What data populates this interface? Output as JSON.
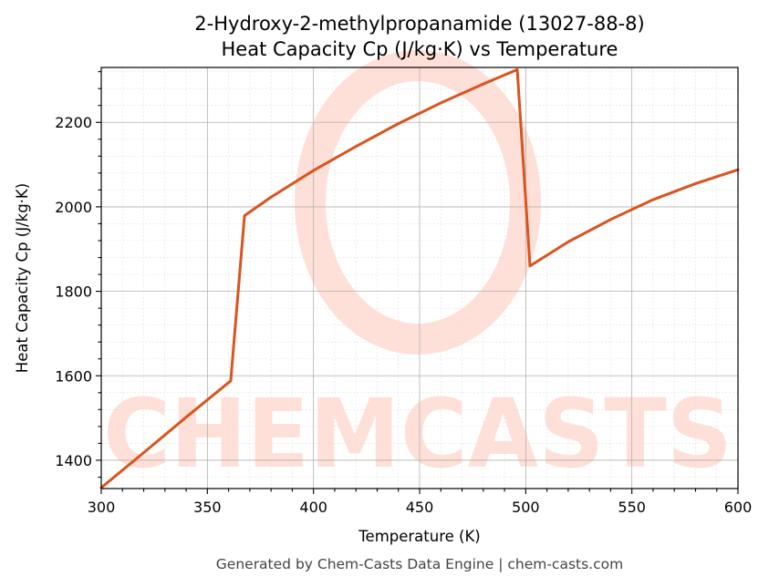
{
  "chart_data": {
    "type": "line",
    "title": "2-Hydroxy-2-methylpropanamide (13027-88-8)",
    "subtitle": "Heat Capacity Cp (J/kg·K) vs Temperature",
    "xlabel": "Temperature (K)",
    "ylabel": "Heat Capacity Cp (J/kg·K)",
    "xlim": [
      300,
      600
    ],
    "ylim": [
      1333,
      2330
    ],
    "x_ticks": [
      300,
      350,
      400,
      450,
      500,
      550,
      600
    ],
    "y_ticks": [
      1400,
      1600,
      1800,
      2000,
      2200
    ],
    "grid": true,
    "series": [
      {
        "color": "#d9541e",
        "x": [
          300,
          320,
          340,
          361,
          367.5,
          380,
          400,
          420,
          440,
          460,
          480,
          496,
          502,
          520,
          540,
          560,
          580,
          600
        ],
        "y": [
          1335,
          1418,
          1502,
          1588,
          1979,
          2023,
          2086,
          2143,
          2197,
          2246,
          2291,
          2325,
          1860,
          1917,
          1970,
          2017,
          2055,
          2088
        ]
      }
    ]
  },
  "watermark": {
    "text": "CHEMCASTS"
  },
  "footer": "Generated by Chem-Casts Data Engine | chem-casts.com"
}
